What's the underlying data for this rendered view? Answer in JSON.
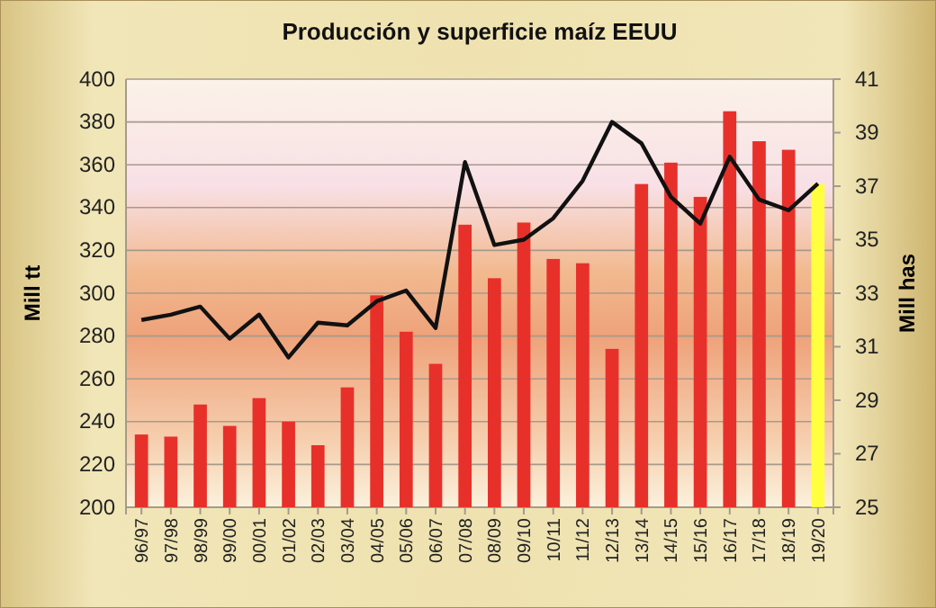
{
  "chart_data": {
    "type": "bar",
    "title": "Producción y superficie maíz EEUU",
    "ylabel": "Mill tt",
    "y2label": "Mill has",
    "categories": [
      "96/97",
      "97/98",
      "98/99",
      "99/00",
      "00/01",
      "01/02",
      "02/03",
      "03/04",
      "04/05",
      "05/06",
      "06/07",
      "07/08",
      "08/09",
      "09/10",
      "10/11",
      "11/12",
      "12/13",
      "13/14",
      "14/15",
      "15/16",
      "16/17",
      "17/18",
      "18/19",
      "19/20"
    ],
    "series": [
      {
        "colors": [
          "#e8302a",
          "#e8302a",
          "#e8302a",
          "#e8302a",
          "#e8302a",
          "#e8302a",
          "#e8302a",
          "#e8302a",
          "#e8302a",
          "#e8302a",
          "#e8302a",
          "#e8302a",
          "#e8302a",
          "#e8302a",
          "#e8302a",
          "#e8302a",
          "#e8302a",
          "#e8302a",
          "#e8302a",
          "#e8302a",
          "#e8302a",
          "#e8302a",
          "#e8302a",
          "#ffff40"
        ],
        "values": [
          234,
          233,
          248,
          238,
          251,
          240,
          229,
          256,
          299,
          282,
          267,
          332,
          307,
          333,
          316,
          314,
          274,
          351,
          361,
          345,
          385,
          371,
          367,
          351
        ]
      },
      {
        "type": "line",
        "axis": "y2",
        "color": "#111111",
        "values": [
          32.0,
          32.2,
          32.5,
          31.3,
          32.2,
          30.6,
          31.9,
          31.8,
          32.7,
          33.1,
          31.7,
          37.9,
          34.8,
          35.0,
          35.8,
          37.2,
          39.4,
          38.6,
          36.6,
          35.6,
          38.1,
          36.5,
          36.1,
          37.1
        ]
      }
    ],
    "ylim": [
      200,
      400
    ],
    "yticks": [
      200,
      220,
      240,
      260,
      280,
      300,
      320,
      340,
      360,
      380,
      400
    ],
    "y2lim": [
      25,
      41
    ],
    "y2ticks": [
      25,
      27,
      29,
      31,
      33,
      35,
      37,
      39,
      41
    ],
    "grid": "y",
    "marker": "none",
    "line_style": "solid"
  }
}
